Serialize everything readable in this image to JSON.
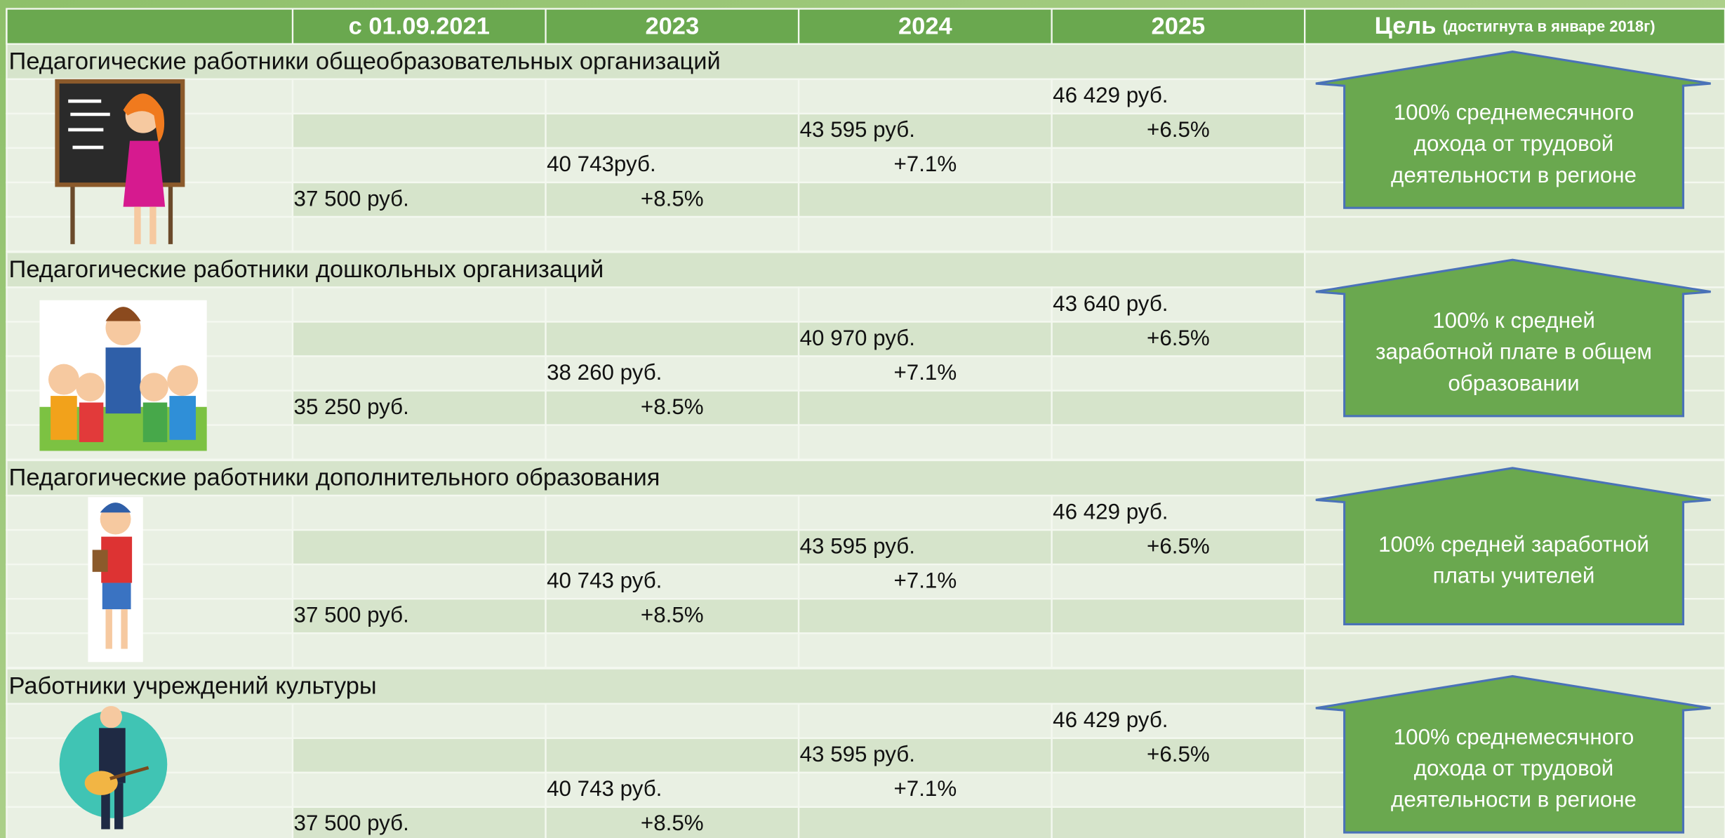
{
  "header": {
    "columns": [
      "с 01.09.2021",
      "2023",
      "2024",
      "2025"
    ],
    "goal_title": "Цель",
    "goal_note": "(достигнута в январе 2018г)"
  },
  "sections": [
    {
      "title": "Педагогические работники общеобразовательных организаций",
      "values": [
        "37 500 руб.",
        "40 743руб.",
        "43 595 руб.",
        "46 429 руб."
      ],
      "growth": [
        "+8.5%",
        "+7.1%",
        "+6.5%"
      ],
      "goal": [
        "100% среднемесячного",
        "дохода от трудовой",
        "деятельности в регионе"
      ]
    },
    {
      "title": "Педагогические работники дошкольных организаций",
      "values": [
        "35 250 руб.",
        "38 260 руб.",
        "40 970 руб.",
        "43 640 руб."
      ],
      "growth": [
        "+8.5%",
        "+7.1%",
        "+6.5%"
      ],
      "goal": [
        "100%  к средней",
        "заработной плате в общем",
        "образовании"
      ]
    },
    {
      "title": "Педагогические работники дополнительного образования",
      "values": [
        "37 500 руб.",
        "40 743 руб.",
        "43 595 руб.",
        "46 429 руб."
      ],
      "growth": [
        "+8.5%",
        "+7.1%",
        "+6.5%"
      ],
      "goal": [
        "100% средней заработной",
        "платы учителей"
      ]
    },
    {
      "title": "Работники учреждений культуры",
      "values": [
        "37 500 руб.",
        "40 743 руб.",
        "43 595 руб.",
        "46 429 руб."
      ],
      "growth": [
        "+8.5%",
        "+7.1%",
        "+6.5%"
      ],
      "goal": [
        "100% среднемесячного",
        "дохода от трудовой",
        "деятельности в регионе"
      ]
    }
  ]
}
